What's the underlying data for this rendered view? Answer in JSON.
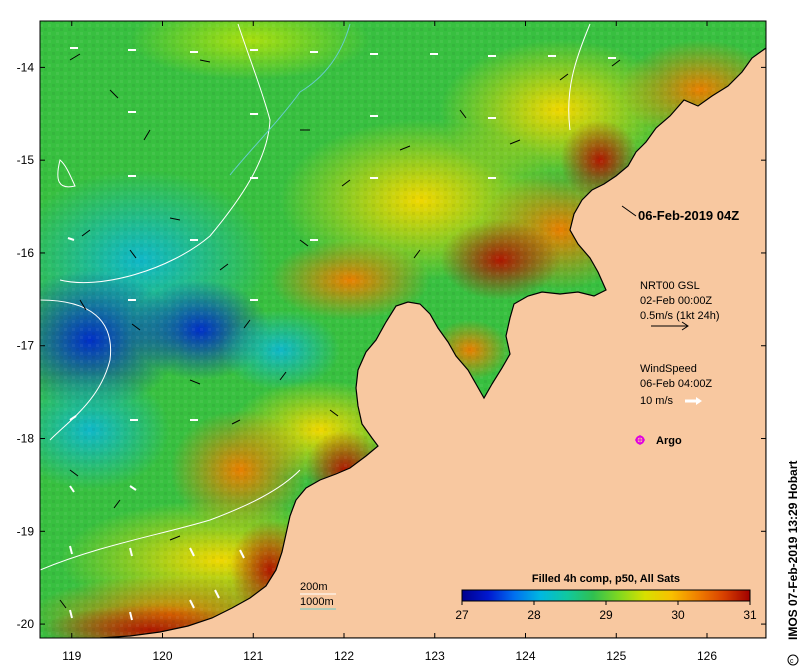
{
  "map": {
    "timestamp": "06-Feb-2019 04Z",
    "lat_ticks": [
      "-14",
      "-15",
      "-16",
      "-17",
      "-18",
      "-19",
      "-20"
    ],
    "lon_ticks": [
      "119",
      "120",
      "121",
      "122",
      "123",
      "124",
      "125",
      "126"
    ],
    "lat_range": [
      -20.15,
      -13.5
    ],
    "lon_range": [
      118.65,
      126.65
    ],
    "colors": {
      "land": "#F8C8A0",
      "coast": "#000000",
      "frame": "#000000",
      "iso200": "#ffffff",
      "iso1000": "#66cccc",
      "argo": "#e000e0"
    }
  },
  "legend": {
    "current_source": "NRT00 GSL",
    "current_time": "02-Feb 00:00Z",
    "current_scale": "0.5m/s (1kt 24h)",
    "wind_title": "WindSpeed",
    "wind_time": "06-Feb 04:00Z",
    "wind_scale": "10 m/s",
    "argo_label": "Argo",
    "isobath_200": "200m",
    "isobath_1000": "1000m"
  },
  "colorbar": {
    "title": "Filled 4h comp, p50, All Sats",
    "ticks": [
      "27",
      "28",
      "29",
      "30",
      "31"
    ],
    "range": [
      27,
      31
    ],
    "stops": [
      "#00008c",
      "#0018d0",
      "#0070f0",
      "#00b8e0",
      "#10c8a0",
      "#30c050",
      "#80d820",
      "#d8e000",
      "#f8c000",
      "#f08000",
      "#d84000",
      "#a00000"
    ]
  },
  "credit": "IMOS 07-Feb-2019 13:29 Hobart"
}
